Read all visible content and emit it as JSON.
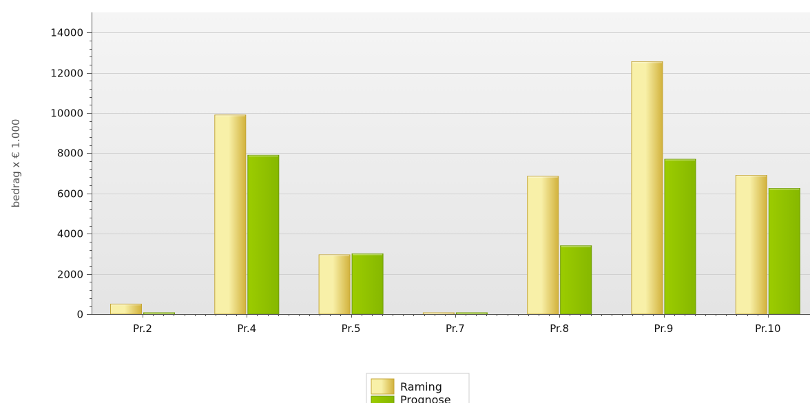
{
  "chart_data": {
    "type": "bar",
    "title": "",
    "xlabel": "",
    "ylabel": "bedrag x € 1.000",
    "categories": [
      "Pr.2",
      "Pr.4",
      "Pr.5",
      "Pr.7",
      "Pr.8",
      "Pr.9",
      "Pr.10"
    ],
    "series": [
      {
        "name": "Raming",
        "values": [
          500,
          9900,
          2950,
          40,
          6850,
          12550,
          6900
        ]
      },
      {
        "name": "Prognose",
        "values": [
          60,
          7900,
          3000,
          60,
          3400,
          7700,
          6250
        ]
      }
    ],
    "ylim": [
      0,
      14000
    ],
    "yticks": [
      0,
      2000,
      4000,
      6000,
      8000,
      10000,
      12000,
      14000
    ],
    "ytick_labels": [
      "0",
      "2000",
      "4000",
      "6000",
      "8000",
      "10000",
      "12000",
      "14000"
    ],
    "grid": true,
    "legend_position": "bottom-center",
    "colors": {
      "Raming": {
        "light": "#f8f0a8",
        "dark": "#d2b23c",
        "stroke": "#c4a637"
      },
      "Prognose": {
        "light": "#9ccc00",
        "dark": "#86b800",
        "stroke": "#6f9c00"
      },
      "plot_bg_top": "#f5f5f5",
      "plot_bg_bottom": "#e4e4e4",
      "grid": "#d0d0d0",
      "axis": "#555555"
    }
  }
}
